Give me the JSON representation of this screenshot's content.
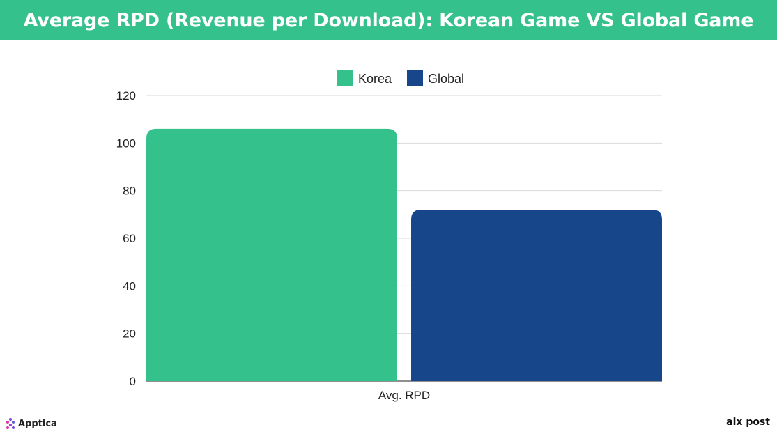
{
  "header": {
    "title": "Average RPD (Revenue per Download): Korean Game VS Global Game"
  },
  "chart_data": {
    "type": "bar",
    "title": "Average RPD (Revenue per Download): Korean Game VS Global Game",
    "categories": [
      "Avg. RPD"
    ],
    "series": [
      {
        "name": "Korea",
        "values": [
          106
        ],
        "color": "#34c18c"
      },
      {
        "name": "Global",
        "values": [
          72
        ],
        "color": "#17468b"
      }
    ],
    "ylim": [
      0,
      120
    ],
    "yticks": [
      "0",
      "20",
      "40",
      "60",
      "80",
      "100",
      "120"
    ],
    "xlabel": "",
    "ylabel": "",
    "grid": true,
    "legend": "top-center"
  },
  "branding": {
    "left_logo_text": "Apptica",
    "right_logo_text": "aix post"
  }
}
